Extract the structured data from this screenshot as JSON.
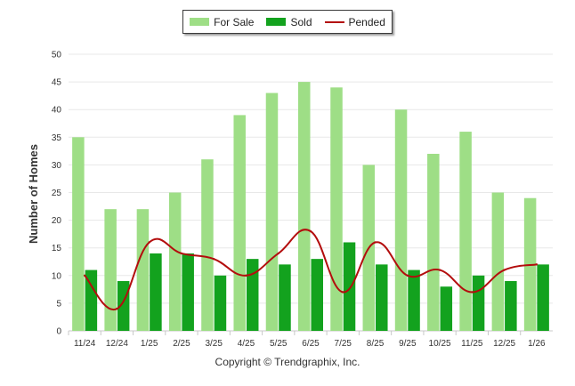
{
  "chart_data": {
    "type": "bar",
    "categories": [
      "11/24",
      "12/24",
      "1/25",
      "2/25",
      "3/25",
      "4/25",
      "5/25",
      "6/25",
      "7/25",
      "8/25",
      "9/25",
      "10/25",
      "11/25",
      "12/25",
      "1/26"
    ],
    "series": [
      {
        "name": "For Sale",
        "type": "bar",
        "color": "#9ede86",
        "values": [
          35,
          22,
          22,
          25,
          31,
          39,
          43,
          45,
          44,
          30,
          40,
          32,
          36,
          25,
          24
        ]
      },
      {
        "name": "Sold",
        "type": "bar",
        "color": "#13a21e",
        "values": [
          11,
          9,
          14,
          14,
          10,
          13,
          12,
          13,
          16,
          12,
          11,
          8,
          10,
          9,
          12
        ]
      },
      {
        "name": "Pended",
        "type": "line",
        "color": "#b30d0d",
        "values": [
          10,
          4,
          16,
          14,
          13,
          10,
          14,
          18,
          7,
          16,
          10,
          11,
          7,
          11,
          12
        ]
      }
    ],
    "ylabel": "Number of Homes",
    "xlabel": "",
    "ylim": [
      0,
      50
    ],
    "yticks": [
      0,
      5,
      10,
      15,
      20,
      25,
      30,
      35,
      40,
      45,
      50
    ],
    "legend_position": "top-center",
    "grid": true
  },
  "footer": {
    "copyright": "Copyright © Trendgraphix, Inc."
  }
}
